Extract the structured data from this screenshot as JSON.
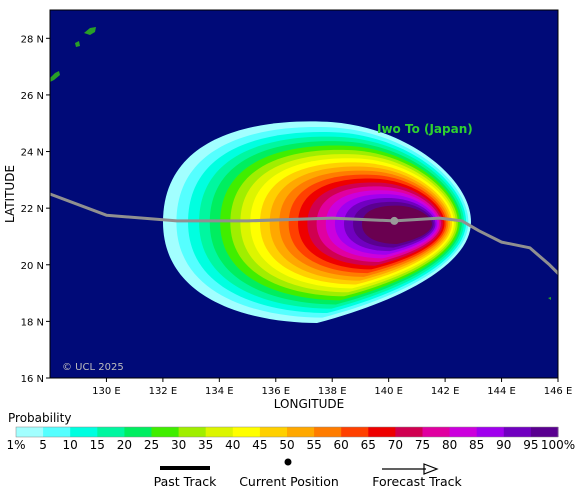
{
  "map": {
    "lon_range": [
      128,
      146
    ],
    "lat_range": [
      16,
      29
    ],
    "ocean_color": "#000a78",
    "land_color": "#28a028",
    "track_color": "#909090",
    "copyright": "© UCL 2025",
    "place_label": "Iwo To (Japan)",
    "place_label_color": "#2fd12f",
    "x_ticks": [
      {
        "value": 130,
        "label": "130 E"
      },
      {
        "value": 132,
        "label": "132 E"
      },
      {
        "value": 134,
        "label": "134 E"
      },
      {
        "value": 136,
        "label": "136 E"
      },
      {
        "value": 138,
        "label": "138 E"
      },
      {
        "value": 140,
        "label": "140 E"
      },
      {
        "value": 142,
        "label": "142 E"
      },
      {
        "value": 144,
        "label": "144 E"
      },
      {
        "value": 146,
        "label": "146 E"
      }
    ],
    "y_ticks": [
      {
        "value": 16,
        "label": "16 N"
      },
      {
        "value": 18,
        "label": "18 N"
      },
      {
        "value": 20,
        "label": "20 N"
      },
      {
        "value": 22,
        "label": "22 N"
      },
      {
        "value": 24,
        "label": "24 N"
      },
      {
        "value": 26,
        "label": "26 N"
      },
      {
        "value": 28,
        "label": "28 N"
      }
    ],
    "xlabel": "LONGITUDE",
    "ylabel": "LATITUDE"
  },
  "storm": {
    "current_position": {
      "lon": 140.2,
      "lat": 21.55
    },
    "track": [
      [
        128.0,
        22.5
      ],
      [
        130.0,
        21.75
      ],
      [
        132.5,
        21.55
      ],
      [
        135.0,
        21.55
      ],
      [
        138.0,
        21.65
      ],
      [
        140.2,
        21.55
      ],
      [
        141.8,
        21.65
      ],
      [
        142.6,
        21.55
      ],
      [
        143.2,
        21.2
      ],
      [
        144.0,
        20.8
      ],
      [
        145.0,
        20.6
      ],
      [
        145.7,
        20.0
      ],
      [
        146.0,
        19.7
      ]
    ],
    "probability_center": {
      "lon": 140.0,
      "lat": 21.6
    }
  },
  "probability_scale": {
    "title": "Probability",
    "levels": [
      {
        "label": "1%",
        "color": "#a2ffff"
      },
      {
        "label": "5",
        "color": "#55ffff"
      },
      {
        "label": "10",
        "color": "#00ffe0"
      },
      {
        "label": "15",
        "color": "#00f7a0"
      },
      {
        "label": "20",
        "color": "#00ee60"
      },
      {
        "label": "25",
        "color": "#40ee00"
      },
      {
        "label": "30",
        "color": "#a0ee00"
      },
      {
        "label": "35",
        "color": "#dcf500"
      },
      {
        "label": "40",
        "color": "#ffff00"
      },
      {
        "label": "45",
        "color": "#ffd000"
      },
      {
        "label": "50",
        "color": "#ffa800"
      },
      {
        "label": "55",
        "color": "#ff7c00"
      },
      {
        "label": "60",
        "color": "#ff4000"
      },
      {
        "label": "65",
        "color": "#ee0000"
      },
      {
        "label": "70",
        "color": "#d00050"
      },
      {
        "label": "75",
        "color": "#e000a0"
      },
      {
        "label": "80",
        "color": "#cc00dd"
      },
      {
        "label": "85",
        "color": "#a000ee"
      },
      {
        "label": "90",
        "color": "#7000c0"
      },
      {
        "label": "95",
        "color": "#5a0090"
      },
      {
        "label": "100%",
        "color": "#6a0050"
      }
    ]
  },
  "legend": {
    "past_track": "Past Track",
    "current_position": "Current Position",
    "forecast_track": "Forecast Track"
  }
}
